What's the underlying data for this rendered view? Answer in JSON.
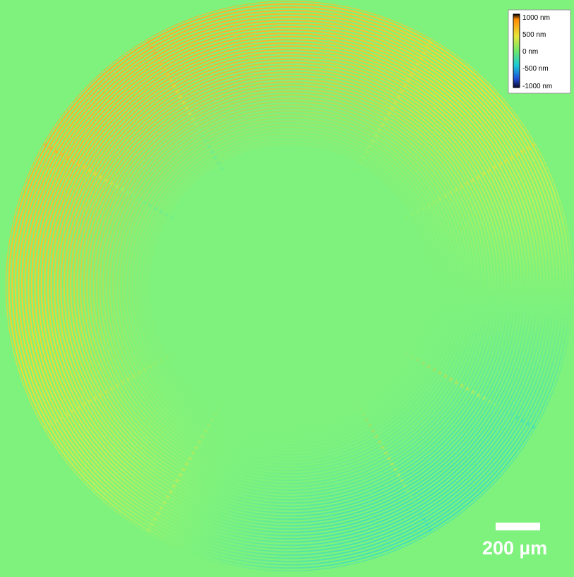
{
  "image": {
    "background_color": "#7ef27c",
    "ring_count": 45,
    "palette": {
      "high": "#ffa626",
      "mid_high": "#f0dc32",
      "zero": "#7ef27c",
      "mid_low": "#3adcc2",
      "low": "#1a64c8"
    }
  },
  "colorbar": {
    "labels": [
      "1000 nm",
      "500 nm",
      "0 nm",
      "-500 nm",
      "-1000 nm"
    ],
    "stops": [
      "#000000",
      "#ff8a00",
      "#e8e63a",
      "#6fe86a",
      "#18c9d6",
      "#1e4fd8",
      "#0a0a30"
    ]
  },
  "scale_bar": {
    "label": "200 µm",
    "color": "#ffffff"
  }
}
